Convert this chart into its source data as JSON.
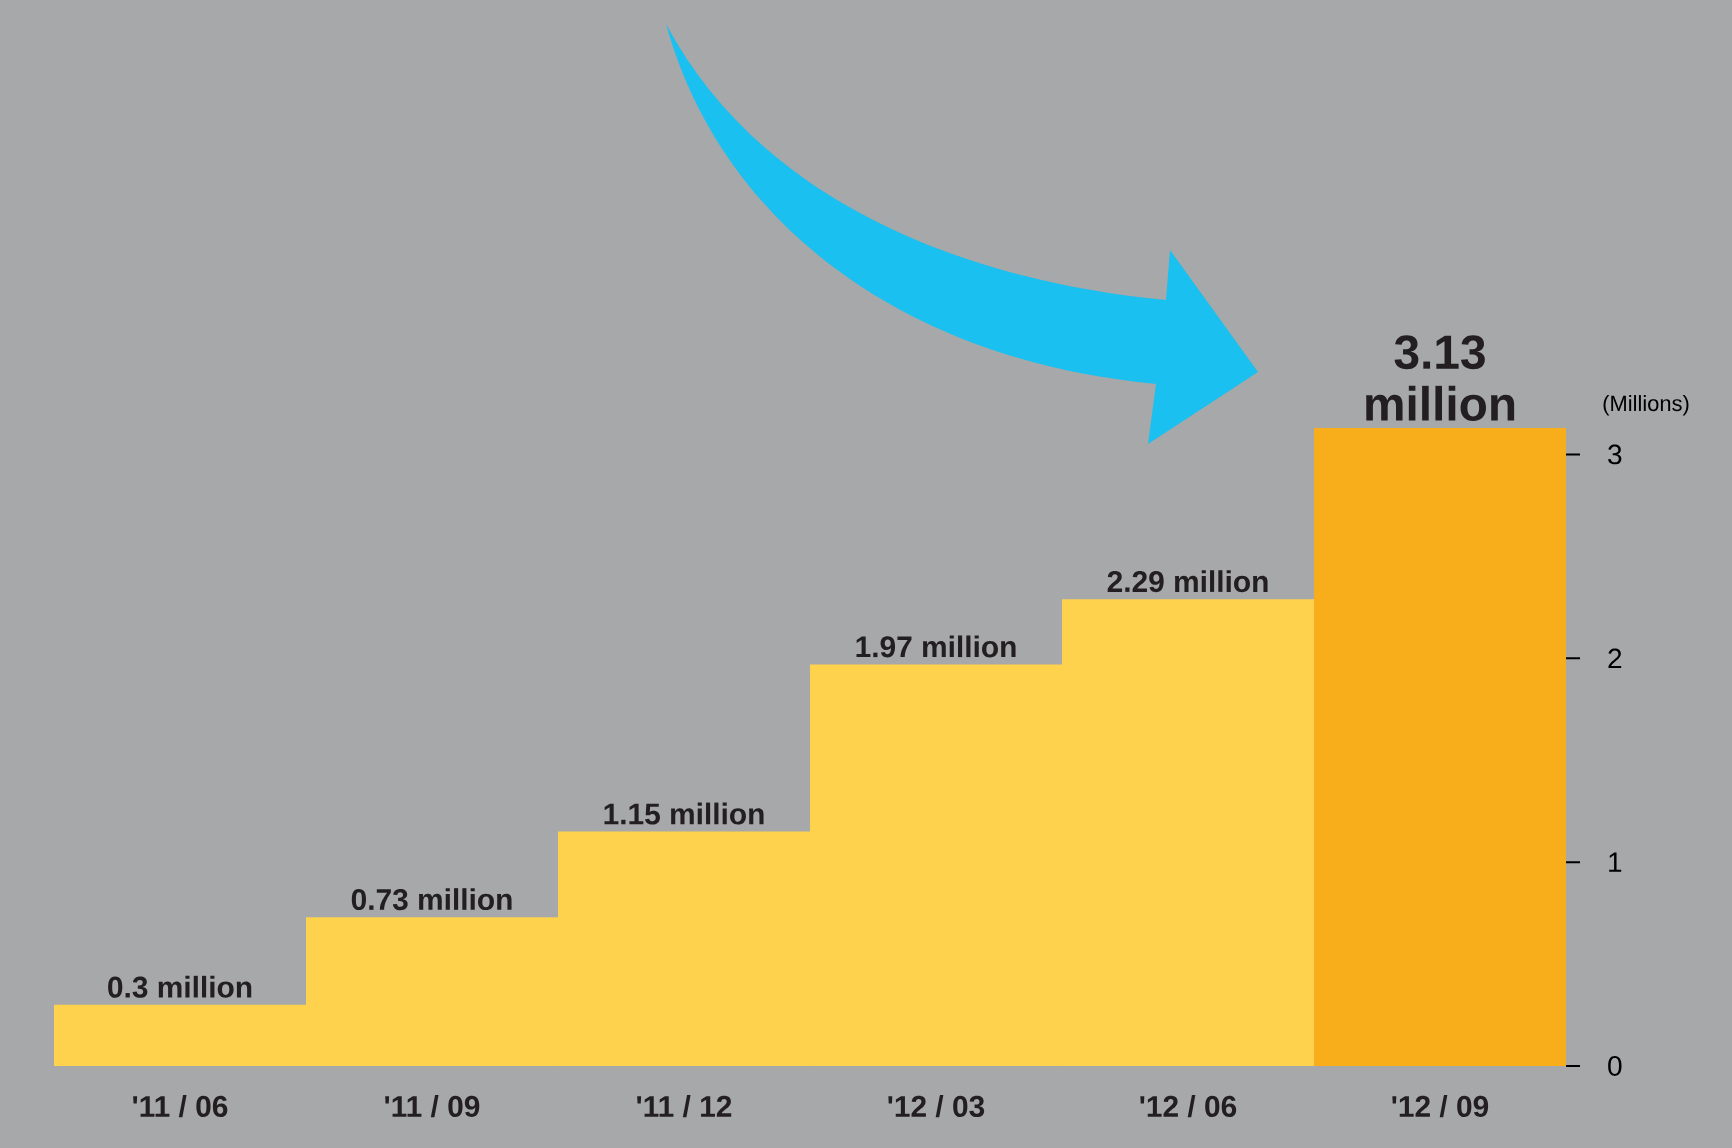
{
  "chart_data": {
    "type": "bar",
    "ylabel": "(Millions)",
    "categories": [
      "'11 / 06",
      "'11 / 09",
      "'11 / 12",
      "'12 / 03",
      "'12 / 06",
      "'12 / 09"
    ],
    "values": [
      0.3,
      0.73,
      1.15,
      1.97,
      2.29,
      3.13
    ],
    "colors": [
      "#fed24c",
      "#fed24c",
      "#fed24c",
      "#fed24c",
      "#fed24c",
      "#f8ae1b"
    ],
    "value_labels": [
      "0.3 million",
      "0.73 million",
      "1.15 million",
      "1.97 million",
      "2.29 million",
      "3.13 million"
    ],
    "ylim": [
      0,
      3.13
    ],
    "yticks": [
      0,
      1,
      2,
      3
    ]
  }
}
